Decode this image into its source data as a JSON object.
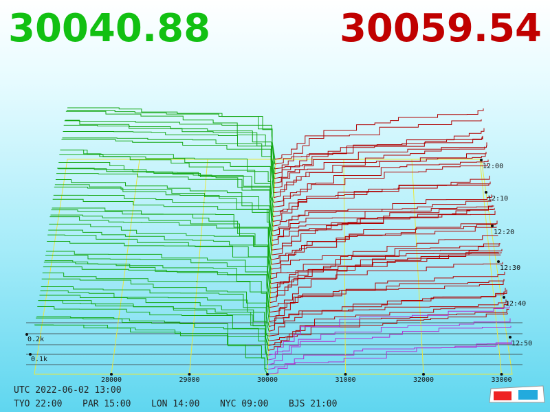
{
  "header": {
    "bid": "30040.88",
    "ask": "30059.54"
  },
  "price_axis": [
    "28000",
    "29000",
    "30000",
    "31000",
    "32000",
    "33000"
  ],
  "depth_axis": [
    "0.2k",
    "0.1k"
  ],
  "time_axis": [
    "12:00",
    "12:10",
    "12:20",
    "12:30",
    "12:40",
    "12:50"
  ],
  "footer": {
    "utc": "UTC 2022-06-02 13:00",
    "clocks": [
      "TYO 22:00",
      "PAR 15:00",
      "LON 14:00",
      "NYC 09:00",
      "BJS 21:00"
    ]
  }
}
